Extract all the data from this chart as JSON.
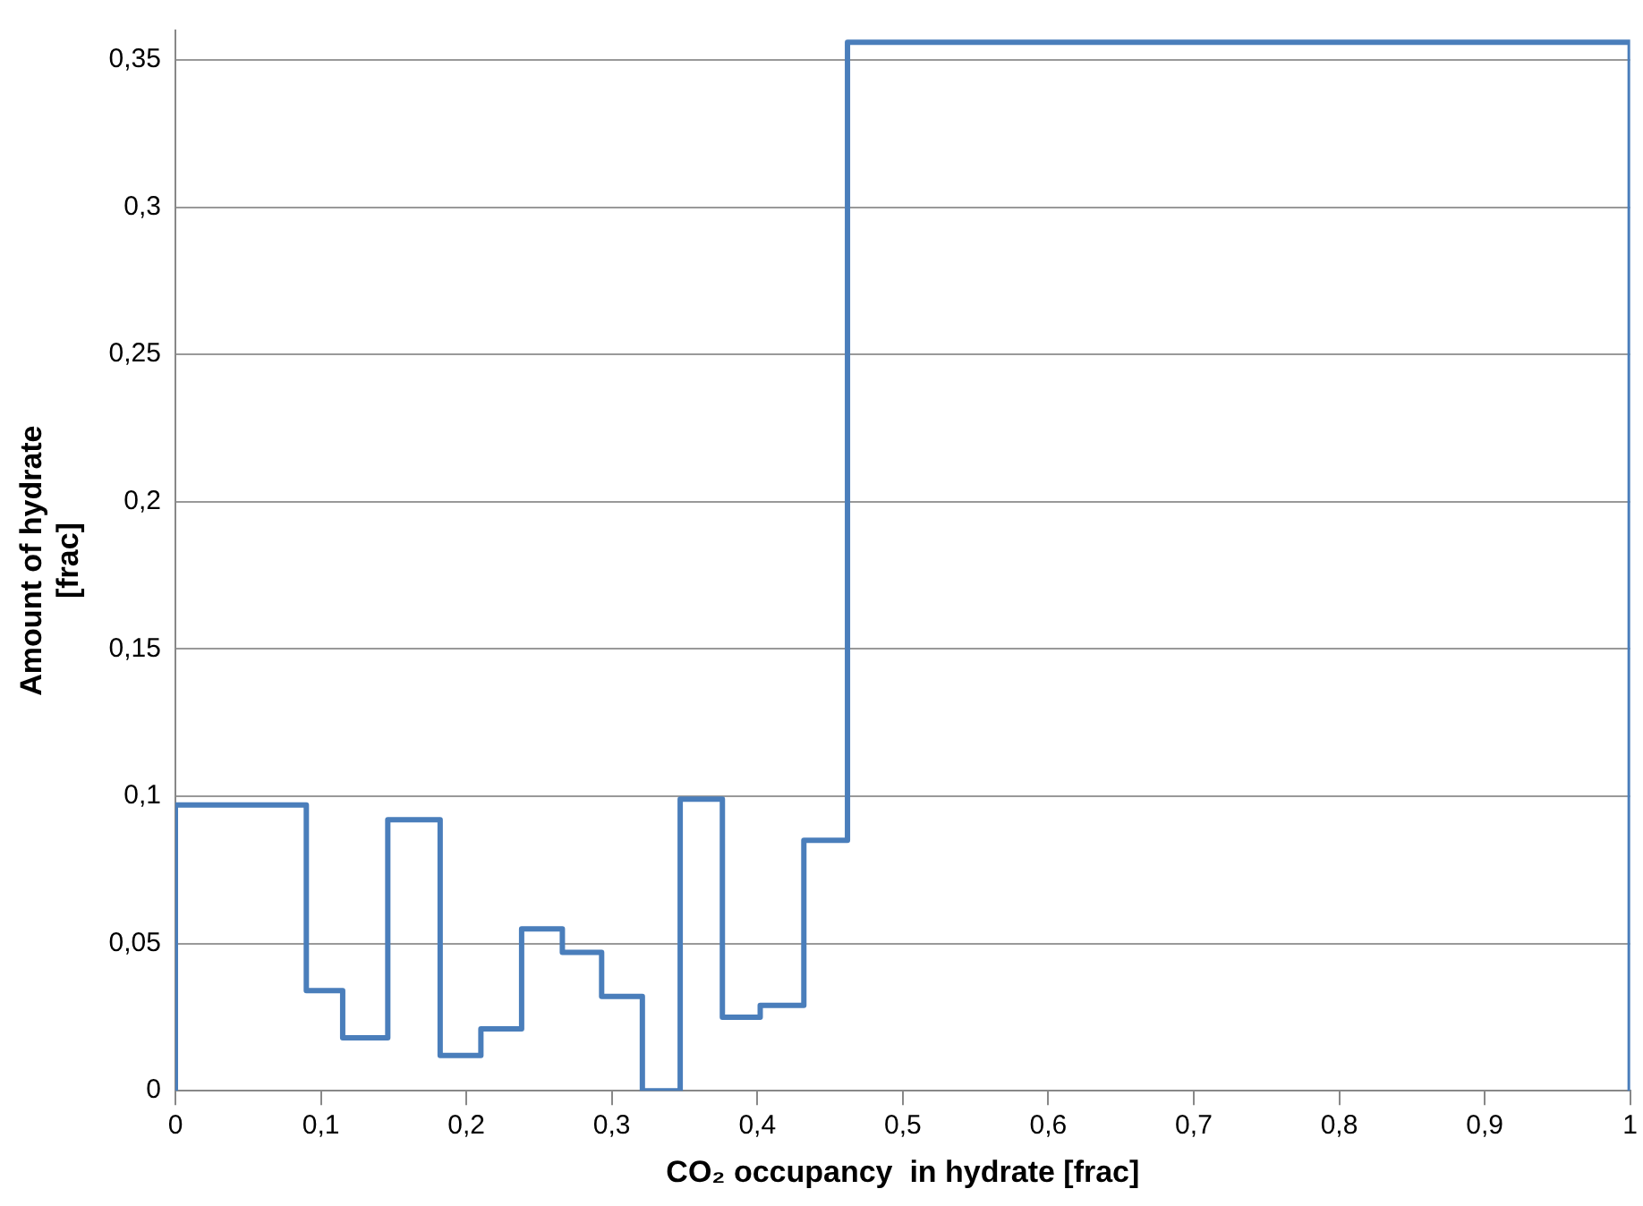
{
  "chart_data": {
    "type": "histogram",
    "xlabel": "CO₂ occupancy  in hydrate [frac]",
    "ylabel": "Amount of hydrate\n[frac]",
    "bins": [
      0,
      0.09,
      0.115,
      0.146,
      0.182,
      0.21,
      0.238,
      0.266,
      0.293,
      0.321,
      0.347,
      0.376,
      0.402,
      0.432,
      0.462,
      1
    ],
    "values": [
      0.097,
      0.034,
      0.018,
      0.092,
      0.012,
      0.021,
      0.055,
      0.047,
      0.032,
      0,
      0.099,
      0.025,
      0.029,
      0.085,
      0.356
    ],
    "color": "#4a7ebb",
    "xlim": [
      0,
      1
    ],
    "xticks": [
      0,
      {
        "value": 0.1,
        "label": "0,1"
      },
      {
        "value": 0.2,
        "label": "0,2"
      },
      {
        "value": 0.3,
        "label": "0,3"
      },
      {
        "value": 0.4,
        "label": "0,4"
      },
      {
        "value": 0.5,
        "label": "0,5"
      },
      {
        "value": 0.6,
        "label": "0,6"
      },
      {
        "value": 0.7,
        "label": "0,7"
      },
      {
        "value": 0.8,
        "label": "0,8"
      },
      {
        "value": 0.9,
        "label": "0,9"
      },
      1
    ],
    "ylim": [
      0,
      0.36
    ],
    "yticks": [
      0,
      {
        "value": 0.05,
        "label": "0,05"
      },
      {
        "value": 0.1,
        "label": "0,1"
      },
      {
        "value": 0.15,
        "label": "0,15"
      },
      {
        "value": 0.2,
        "label": "0,2"
      },
      {
        "value": 0.25,
        "label": "0,25"
      },
      {
        "value": 0.3,
        "label": "0,3"
      },
      {
        "value": 0.35,
        "label": "0,35"
      }
    ],
    "grid": "y",
    "legend": false
  }
}
